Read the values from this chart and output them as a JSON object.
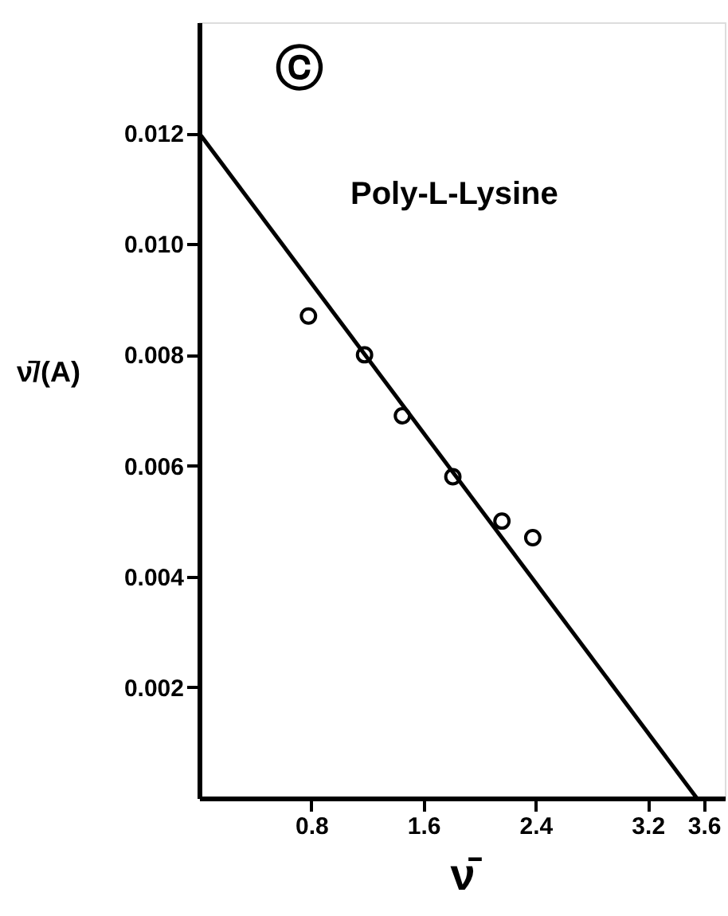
{
  "chart_data": {
    "type": "scatter",
    "xlabel": "ν̄",
    "ylabel": "ν̄/(A)",
    "annotations": [
      "ⓒ",
      "Poly-L-Lysine"
    ],
    "xlim": [
      0,
      3.75
    ],
    "ylim": [
      0,
      0.014
    ],
    "xticks": [
      0.8,
      1.6,
      2.4,
      3.2,
      3.6
    ],
    "yticks": [
      0.002,
      0.004,
      0.006,
      0.008,
      {
        "value": 0.01,
        "label": "0.010"
      },
      0.012
    ],
    "grid": false,
    "series": [
      {
        "marker": "circle",
        "color": "#000000",
        "x": [
          0.78,
          1.18,
          1.45,
          1.81,
          2.16,
          2.38
        ],
        "values": [
          0.0087,
          0.008,
          0.0069,
          0.0058,
          0.005,
          0.0047
        ]
      },
      {
        "type": "line",
        "line_style": "solid",
        "color": "#000000",
        "x": [
          0,
          3.55
        ],
        "values": [
          0.012,
          0
        ]
      }
    ]
  }
}
